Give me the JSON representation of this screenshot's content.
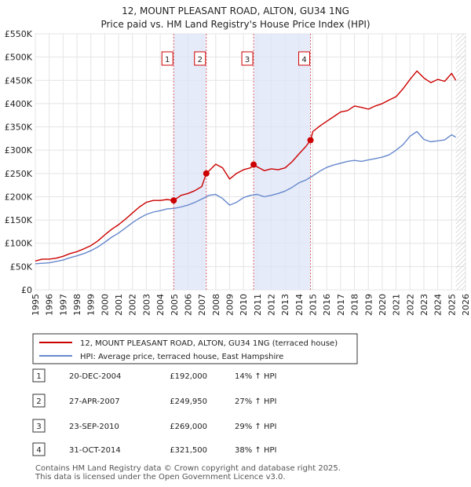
{
  "chart_data": {
    "type": "line",
    "title": "12, MOUNT PLEASANT ROAD, ALTON, GU34 1NG",
    "subtitle": "Price paid vs. HM Land Registry's House Price Index (HPI)",
    "ylim": [
      0,
      550000
    ],
    "xlim": [
      1995,
      2026
    ],
    "y_ticks": [
      {
        "value": 0,
        "label": "£0"
      },
      {
        "value": 50000,
        "label": "£50K"
      },
      {
        "value": 100000,
        "label": "£100K"
      },
      {
        "value": 150000,
        "label": "£150K"
      },
      {
        "value": 200000,
        "label": "£200K"
      },
      {
        "value": 250000,
        "label": "£250K"
      },
      {
        "value": 300000,
        "label": "£300K"
      },
      {
        "value": 350000,
        "label": "£350K"
      },
      {
        "value": 400000,
        "label": "£400K"
      },
      {
        "value": 450000,
        "label": "£450K"
      },
      {
        "value": 500000,
        "label": "£500K"
      },
      {
        "value": 550000,
        "label": "£550K"
      }
    ],
    "x_ticks": [
      "1995",
      "1996",
      "1997",
      "1998",
      "1999",
      "2000",
      "2001",
      "2002",
      "2003",
      "2004",
      "2005",
      "2006",
      "2007",
      "2008",
      "2009",
      "2010",
      "2011",
      "2012",
      "2013",
      "2014",
      "2015",
      "2016",
      "2017",
      "2018",
      "2019",
      "2020",
      "2021",
      "2022",
      "2023",
      "2024",
      "2025",
      "2026"
    ],
    "series": [
      {
        "name": "12, MOUNT PLEASANT ROAD, ALTON, GU34 1NG (terraced house)",
        "color": "#cc0000",
        "x": [
          1995.0,
          1995.5,
          1996.0,
          1996.5,
          1997.0,
          1997.5,
          1998.0,
          1998.5,
          1999.0,
          1999.5,
          2000.0,
          2000.5,
          2001.0,
          2001.5,
          2002.0,
          2002.5,
          2003.0,
          2003.5,
          2004.0,
          2004.5,
          2004.97,
          2005.5,
          2006.0,
          2006.5,
          2007.0,
          2007.32,
          2007.6,
          2008.0,
          2008.5,
          2009.0,
          2009.5,
          2010.0,
          2010.5,
          2010.73,
          2011.0,
          2011.5,
          2012.0,
          2012.5,
          2013.0,
          2013.5,
          2014.0,
          2014.5,
          2014.83,
          2015.0,
          2015.5,
          2016.0,
          2016.5,
          2017.0,
          2017.5,
          2018.0,
          2018.5,
          2019.0,
          2019.5,
          2020.0,
          2020.5,
          2021.0,
          2021.5,
          2022.0,
          2022.5,
          2023.0,
          2023.5,
          2024.0,
          2024.5,
          2025.0,
          2025.3
        ],
        "y": [
          62000,
          66000,
          66000,
          68000,
          72000,
          78000,
          82000,
          88000,
          95000,
          105000,
          118000,
          130000,
          140000,
          152000,
          165000,
          178000,
          188000,
          192000,
          192000,
          194000,
          192000,
          203000,
          207000,
          213000,
          222000,
          249950,
          258000,
          270000,
          262000,
          238000,
          250000,
          258000,
          262000,
          269000,
          264000,
          256000,
          260000,
          258000,
          262000,
          275000,
          292000,
          308000,
          321500,
          340000,
          352000,
          362000,
          372000,
          382000,
          385000,
          395000,
          392000,
          388000,
          395000,
          400000,
          408000,
          415000,
          432000,
          452000,
          470000,
          455000,
          445000,
          452000,
          448000,
          465000,
          450000
        ]
      },
      {
        "name": "HPI: Average price, terraced house, East Hampshire",
        "color": "#6688cc",
        "x": [
          1995.0,
          1995.5,
          1996.0,
          1996.5,
          1997.0,
          1997.5,
          1998.0,
          1998.5,
          1999.0,
          1999.5,
          2000.0,
          2000.5,
          2001.0,
          2001.5,
          2002.0,
          2002.5,
          2003.0,
          2003.5,
          2004.0,
          2004.5,
          2005.0,
          2005.5,
          2006.0,
          2006.5,
          2007.0,
          2007.5,
          2008.0,
          2008.5,
          2009.0,
          2009.5,
          2010.0,
          2010.5,
          2011.0,
          2011.5,
          2012.0,
          2012.5,
          2013.0,
          2013.5,
          2014.0,
          2014.5,
          2015.0,
          2015.5,
          2016.0,
          2016.5,
          2017.0,
          2017.5,
          2018.0,
          2018.5,
          2019.0,
          2019.5,
          2020.0,
          2020.5,
          2021.0,
          2021.5,
          2022.0,
          2022.5,
          2023.0,
          2023.5,
          2024.0,
          2024.5,
          2025.0,
          2025.3
        ],
        "y": [
          56000,
          57000,
          58000,
          61000,
          64000,
          69000,
          73000,
          78000,
          84000,
          92000,
          102000,
          113000,
          122000,
          133000,
          144000,
          154000,
          162000,
          167000,
          170000,
          174000,
          175000,
          178000,
          182000,
          188000,
          195000,
          203000,
          205000,
          196000,
          182000,
          188000,
          198000,
          203000,
          205000,
          200000,
          203000,
          207000,
          212000,
          220000,
          230000,
          236000,
          245000,
          255000,
          263000,
          268000,
          272000,
          276000,
          278000,
          276000,
          279000,
          282000,
          285000,
          290000,
          300000,
          312000,
          330000,
          340000,
          323000,
          318000,
          320000,
          322000,
          333000,
          328000
        ]
      }
    ],
    "sales": [
      {
        "label": "1",
        "x": 2004.97,
        "value": 192000
      },
      {
        "label": "2",
        "x": 2007.32,
        "value": 249950
      },
      {
        "label": "3",
        "x": 2010.73,
        "value": 269000
      },
      {
        "label": "4",
        "x": 2014.83,
        "value": 321500
      }
    ],
    "shaded_spans": [
      [
        2004.97,
        2007.32
      ],
      [
        2010.73,
        2014.83
      ]
    ],
    "hatch_from": 2025.3
  },
  "legend": {
    "items": [
      {
        "label": "12, MOUNT PLEASANT ROAD, ALTON, GU34 1NG (terraced house)",
        "color": "#cc0000"
      },
      {
        "label": "HPI: Average price, terraced house, East Hampshire",
        "color": "#6688cc"
      }
    ]
  },
  "transactions": [
    {
      "num": "1",
      "date": "20-DEC-2004",
      "price": "£192,000",
      "hpi": "14% ↑ HPI"
    },
    {
      "num": "2",
      "date": "27-APR-2007",
      "price": "£249,950",
      "hpi": "27% ↑ HPI"
    },
    {
      "num": "3",
      "date": "23-SEP-2010",
      "price": "£269,000",
      "hpi": "29% ↑ HPI"
    },
    {
      "num": "4",
      "date": "31-OCT-2014",
      "price": "£321,500",
      "hpi": "38% ↑ HPI"
    }
  ],
  "footer": {
    "line1": "Contains HM Land Registry data © Crown copyright and database right 2025.",
    "line2": "This data is licensed under the Open Government Licence v3.0."
  }
}
